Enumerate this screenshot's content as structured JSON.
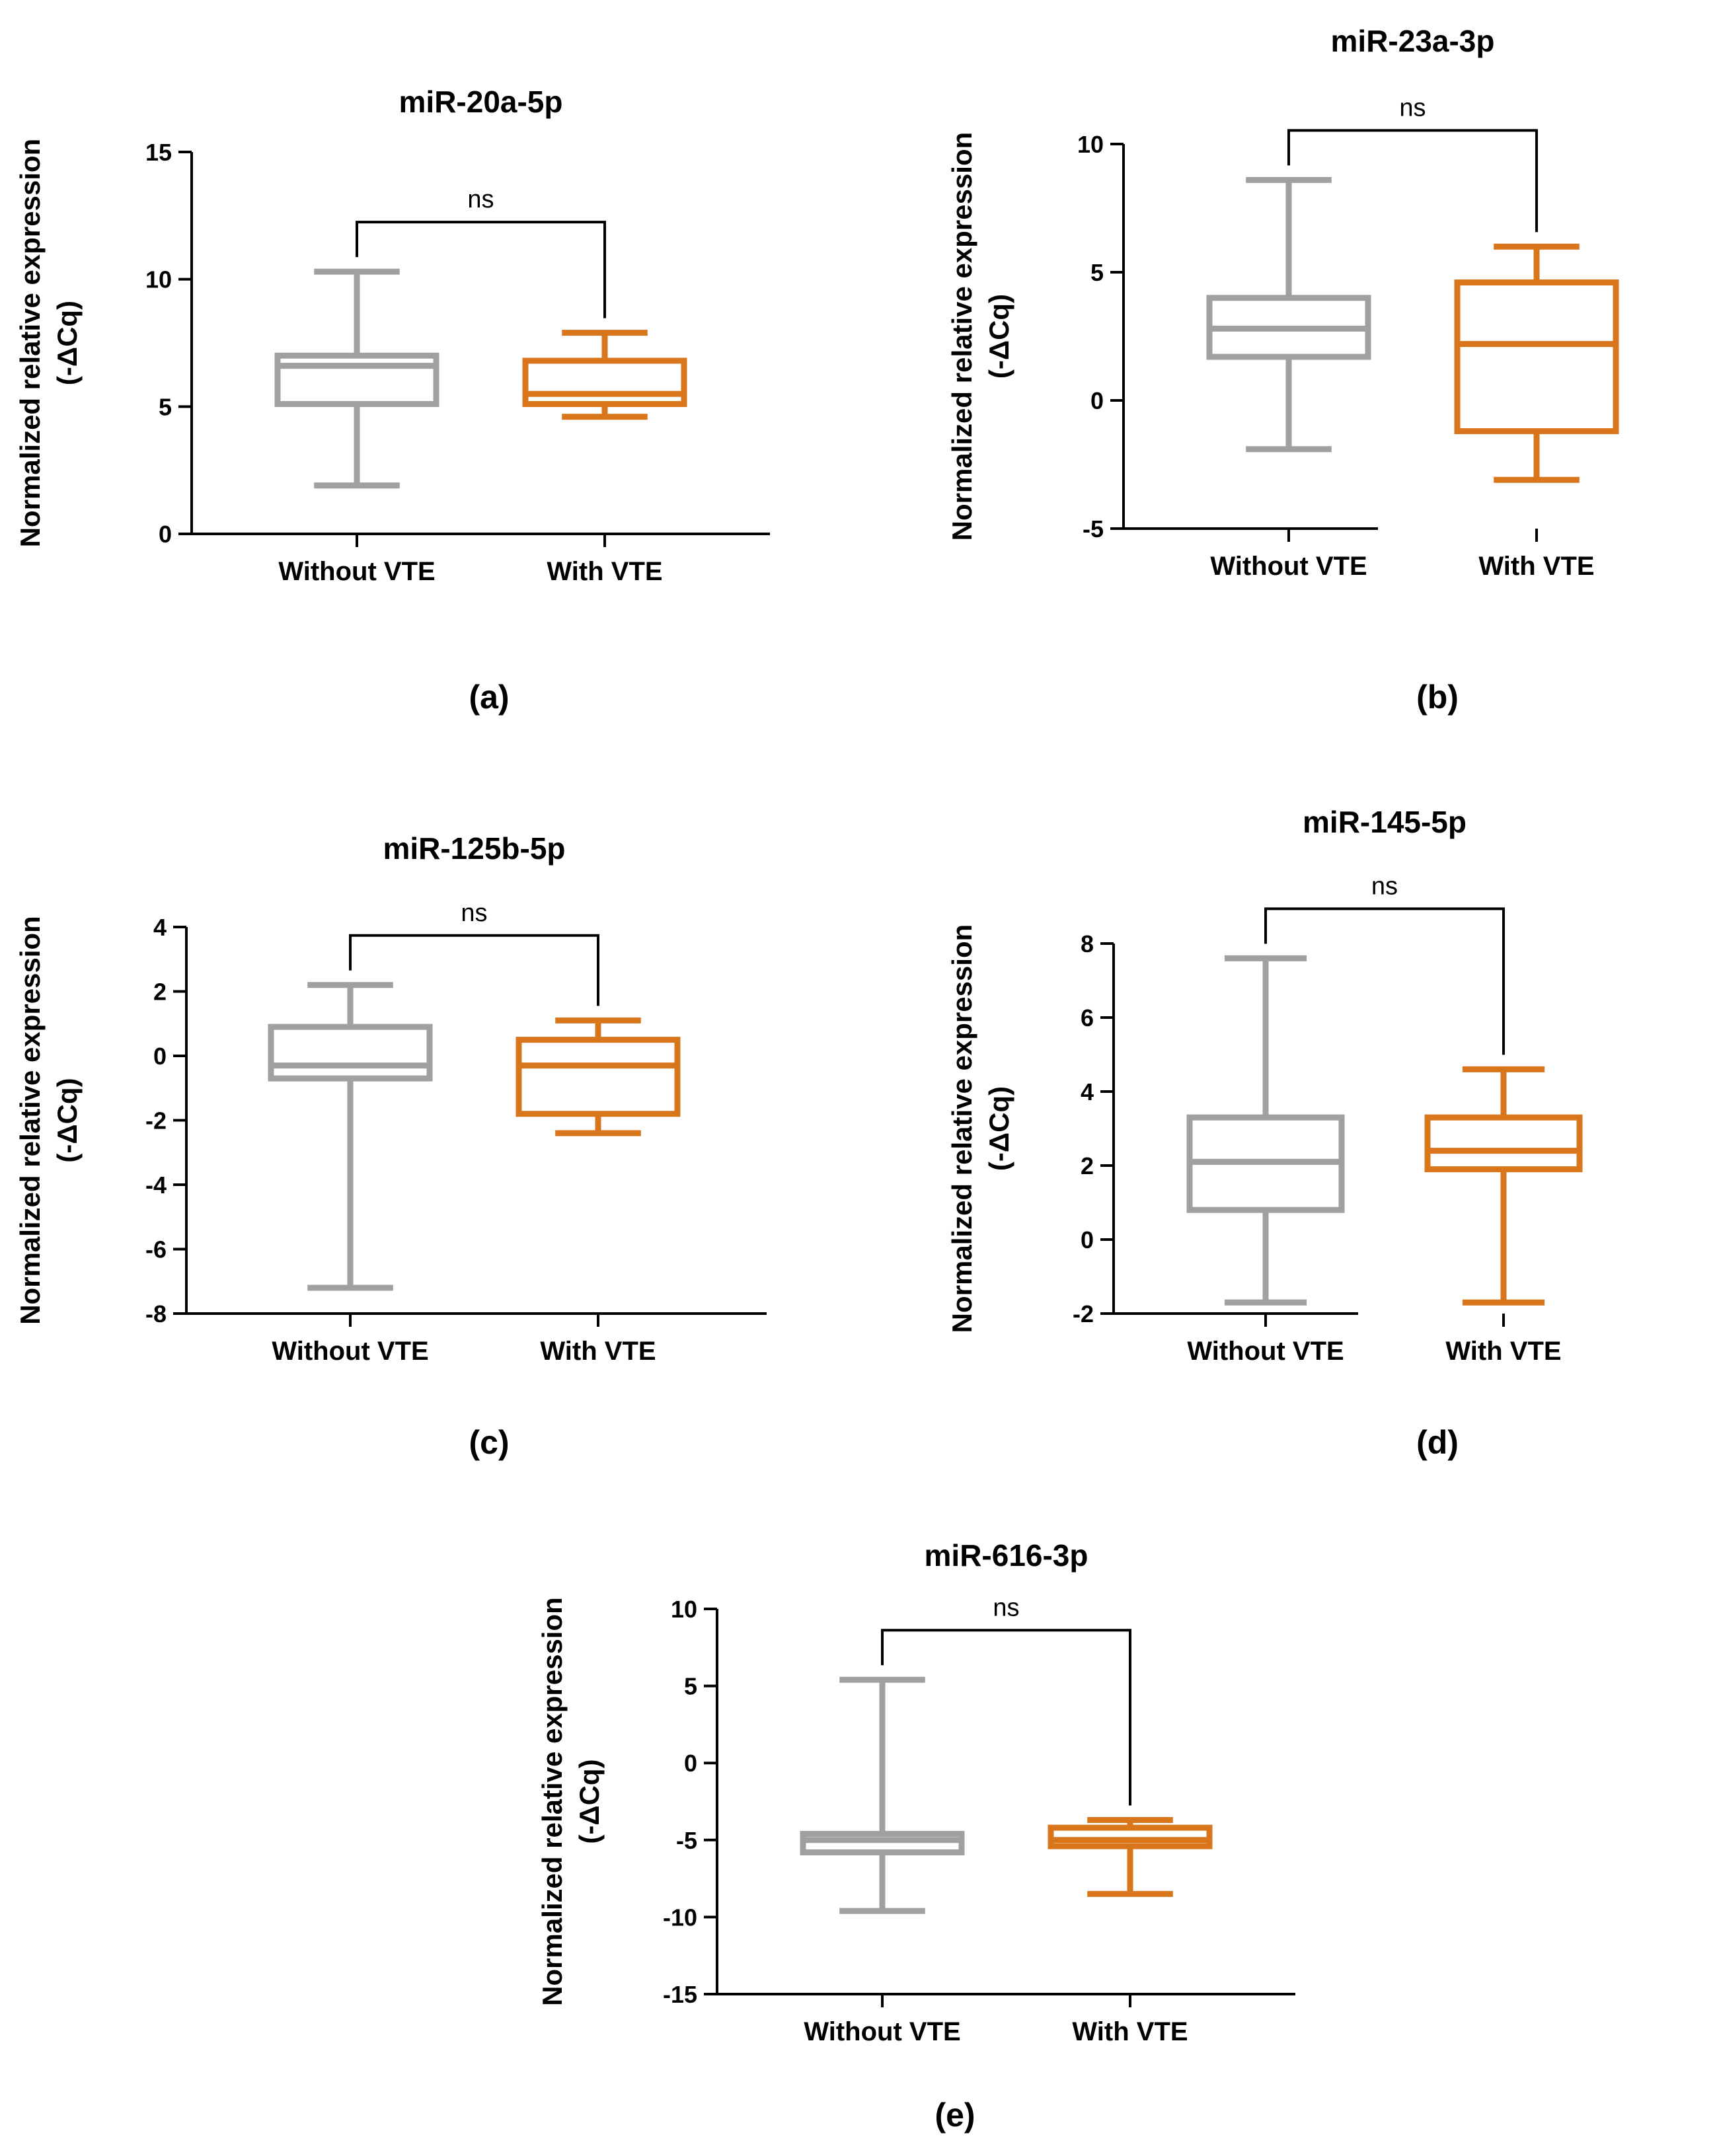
{
  "chart_data": [
    {
      "type": "box",
      "panel_label": "(a)",
      "title": "miR-20a-5p",
      "ylabel": [
        "Normalized relative expression",
        "(-ΔCq)"
      ],
      "categories": [
        "Without VTE",
        "With VTE"
      ],
      "ylim": [
        0,
        15
      ],
      "yticks": [
        0,
        5,
        10,
        15
      ],
      "significance": "ns",
      "series": [
        {
          "category": "Without VTE",
          "min": 1.9,
          "q1": 5.1,
          "median": 6.6,
          "q3": 7.0,
          "max": 10.3,
          "color": "#a0a0a0"
        },
        {
          "category": "With VTE",
          "min": 4.6,
          "q1": 5.1,
          "median": 5.5,
          "q3": 6.8,
          "max": 7.9,
          "color": "#d9761c"
        }
      ]
    },
    {
      "type": "box",
      "panel_label": "(b)",
      "title": "miR-23a-3p",
      "ylabel": [
        "Normalized relative expression",
        "(-ΔCq)"
      ],
      "categories": [
        "Without VTE",
        "With VTE"
      ],
      "ylim": [
        -5,
        10
      ],
      "yticks": [
        -5,
        0,
        5,
        10
      ],
      "significance": "ns",
      "series": [
        {
          "category": "Without VTE",
          "min": -1.9,
          "q1": 1.7,
          "median": 2.8,
          "q3": 4.0,
          "max": 8.6,
          "color": "#a0a0a0"
        },
        {
          "category": "With VTE",
          "min": -3.1,
          "q1": -1.2,
          "median": 2.2,
          "q3": 4.6,
          "max": 6.0,
          "color": "#d9761c"
        }
      ]
    },
    {
      "type": "box",
      "panel_label": "(c)",
      "title": "miR-125b-5p",
      "ylabel": [
        "Normalized relative expression",
        "(-ΔCq)"
      ],
      "categories": [
        "Without VTE",
        "With VTE"
      ],
      "ylim": [
        -8,
        4
      ],
      "yticks": [
        -8,
        -6,
        -4,
        -2,
        0,
        2,
        4
      ],
      "significance": "ns",
      "series": [
        {
          "category": "Without VTE",
          "min": -7.2,
          "q1": -0.7,
          "median": -0.3,
          "q3": 0.9,
          "max": 2.2,
          "color": "#a0a0a0"
        },
        {
          "category": "With VTE",
          "min": -2.4,
          "q1": -1.8,
          "median": -0.3,
          "q3": 0.5,
          "max": 1.1,
          "color": "#d9761c"
        }
      ]
    },
    {
      "type": "box",
      "panel_label": "(d)",
      "title": "miR-145-5p",
      "ylabel": [
        "Normalized relative expression",
        "(-ΔCq)"
      ],
      "categories": [
        "Without VTE",
        "With VTE"
      ],
      "ylim": [
        -2,
        8
      ],
      "yticks": [
        -2,
        0,
        2,
        4,
        6,
        8
      ],
      "significance": "ns",
      "series": [
        {
          "category": "Without VTE",
          "min": -1.7,
          "q1": 0.8,
          "median": 2.1,
          "q3": 3.3,
          "max": 7.6,
          "color": "#a0a0a0"
        },
        {
          "category": "With VTE",
          "min": -1.7,
          "q1": 1.9,
          "median": 2.4,
          "q3": 3.3,
          "max": 4.6,
          "color": "#d9761c"
        }
      ]
    },
    {
      "type": "box",
      "panel_label": "(e)",
      "title": "miR-616-3p",
      "ylabel": [
        "Normalized relative expression",
        "(-ΔCq)"
      ],
      "categories": [
        "Without VTE",
        "With VTE"
      ],
      "ylim": [
        -15,
        10
      ],
      "yticks": [
        -15,
        -10,
        -5,
        0,
        5,
        10
      ],
      "significance": "ns",
      "series": [
        {
          "category": "Without VTE",
          "min": -9.6,
          "q1": -5.8,
          "median": -5.0,
          "q3": -4.6,
          "max": 5.4,
          "color": "#a0a0a0"
        },
        {
          "category": "With VTE",
          "min": -8.5,
          "q1": -5.4,
          "median": -5.0,
          "q3": -4.2,
          "max": -3.7,
          "color": "#d9761c"
        }
      ]
    }
  ]
}
